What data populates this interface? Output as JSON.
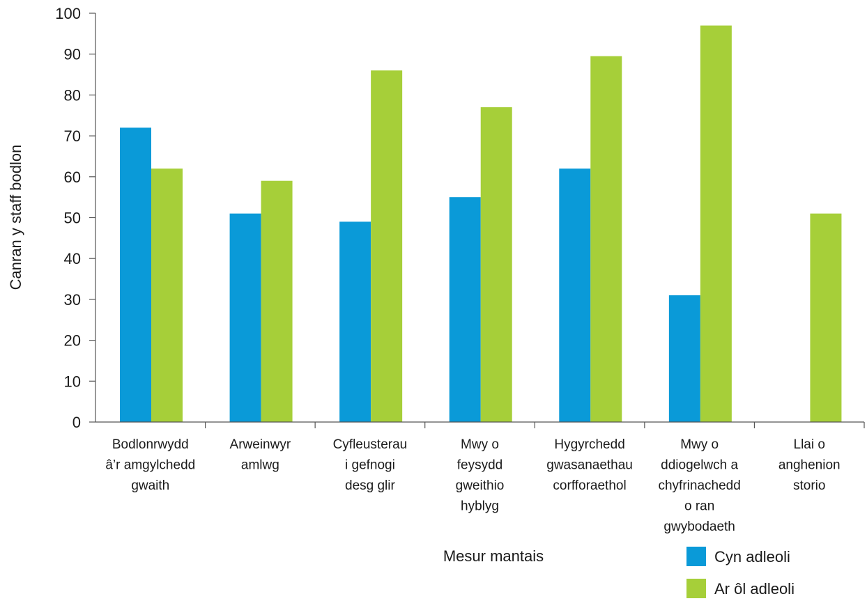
{
  "chart_data": {
    "type": "bar",
    "title": "",
    "xlabel": "Mesur mantais",
    "ylabel": "Canran y staff bodlon",
    "ylim": [
      0,
      100
    ],
    "yticks": [
      0,
      10,
      20,
      30,
      40,
      50,
      60,
      70,
      80,
      90,
      100
    ],
    "grid": false,
    "legend_position": "bottom-right",
    "categories": [
      [
        "Bodlonrwydd",
        "â’r amgylchedd",
        "gwaith"
      ],
      [
        "Arweinwyr",
        "amlwg"
      ],
      [
        "Cyfleusterau",
        "i gefnogi",
        "desg glir"
      ],
      [
        "Mwy o",
        "feysydd",
        "gweithio",
        "hyblyg"
      ],
      [
        "Hygyrchedd",
        "gwasanaethau",
        "corfforaethol"
      ],
      [
        "Mwy o",
        "ddiogelwch a",
        "chyfrinachedd",
        "o ran",
        "gwybodaeth"
      ],
      [
        "Llai o",
        "anghenion",
        "storio"
      ]
    ],
    "series": [
      {
        "name": "Cyn adleoli",
        "color": "#0a9ad8",
        "values": [
          72,
          51,
          49,
          55,
          62,
          31,
          null
        ]
      },
      {
        "name": "Ar ôl adleoli",
        "color": "#a6cf39",
        "values": [
          62,
          59,
          86,
          77,
          89.5,
          97,
          51
        ]
      }
    ]
  }
}
